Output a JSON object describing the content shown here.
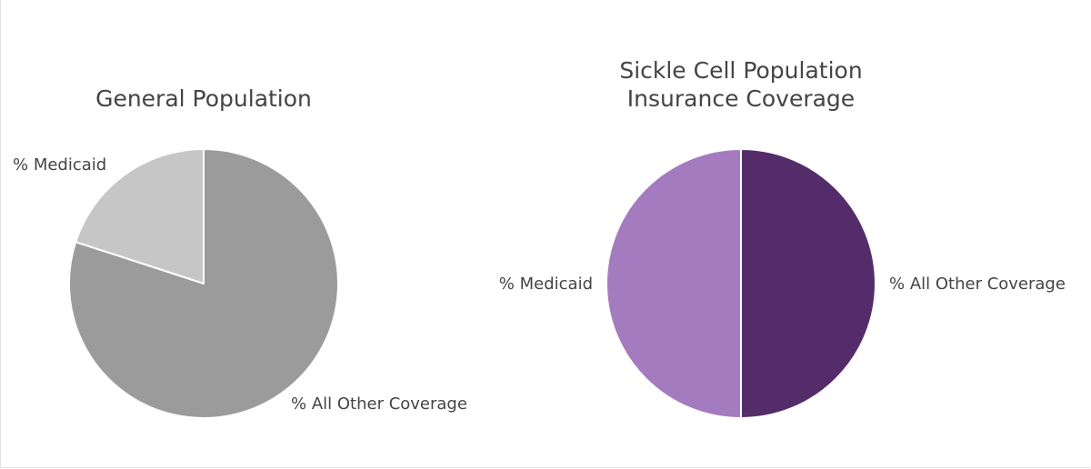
{
  "chart_data": [
    {
      "type": "pie",
      "title": "General Population",
      "categories": [
        "% Medicaid",
        "% All Other Coverage"
      ],
      "values": [
        20,
        80
      ],
      "colors": [
        "#c6c6c6",
        "#9b9b9b"
      ],
      "start_angle": "12 o'clock",
      "direction": "counterclockwise"
    },
    {
      "type": "pie",
      "title": "Sickle Cell Population Insurance Coverage",
      "title_lines": [
        "Sickle Cell Population",
        "Insurance Coverage"
      ],
      "categories": [
        "% Medicaid",
        "% All Other Coverage"
      ],
      "values": [
        50,
        50
      ],
      "colors": [
        "#a57bc0",
        "#552c6a"
      ],
      "start_angle": "12 o'clock",
      "direction": "counterclockwise"
    }
  ]
}
